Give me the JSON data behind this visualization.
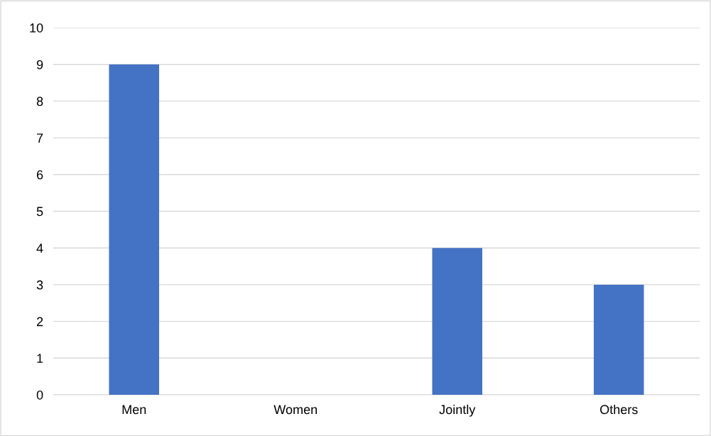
{
  "chart_data": {
    "type": "bar",
    "categories": [
      "Men",
      "Women",
      "Jointly",
      "Others"
    ],
    "values": [
      9,
      0,
      4,
      3
    ],
    "color": "#4472c4",
    "ylim": [
      0,
      10
    ],
    "yticks": [
      0,
      1,
      2,
      3,
      4,
      5,
      6,
      7,
      8,
      9,
      10
    ],
    "grid": "y",
    "legend": false
  }
}
